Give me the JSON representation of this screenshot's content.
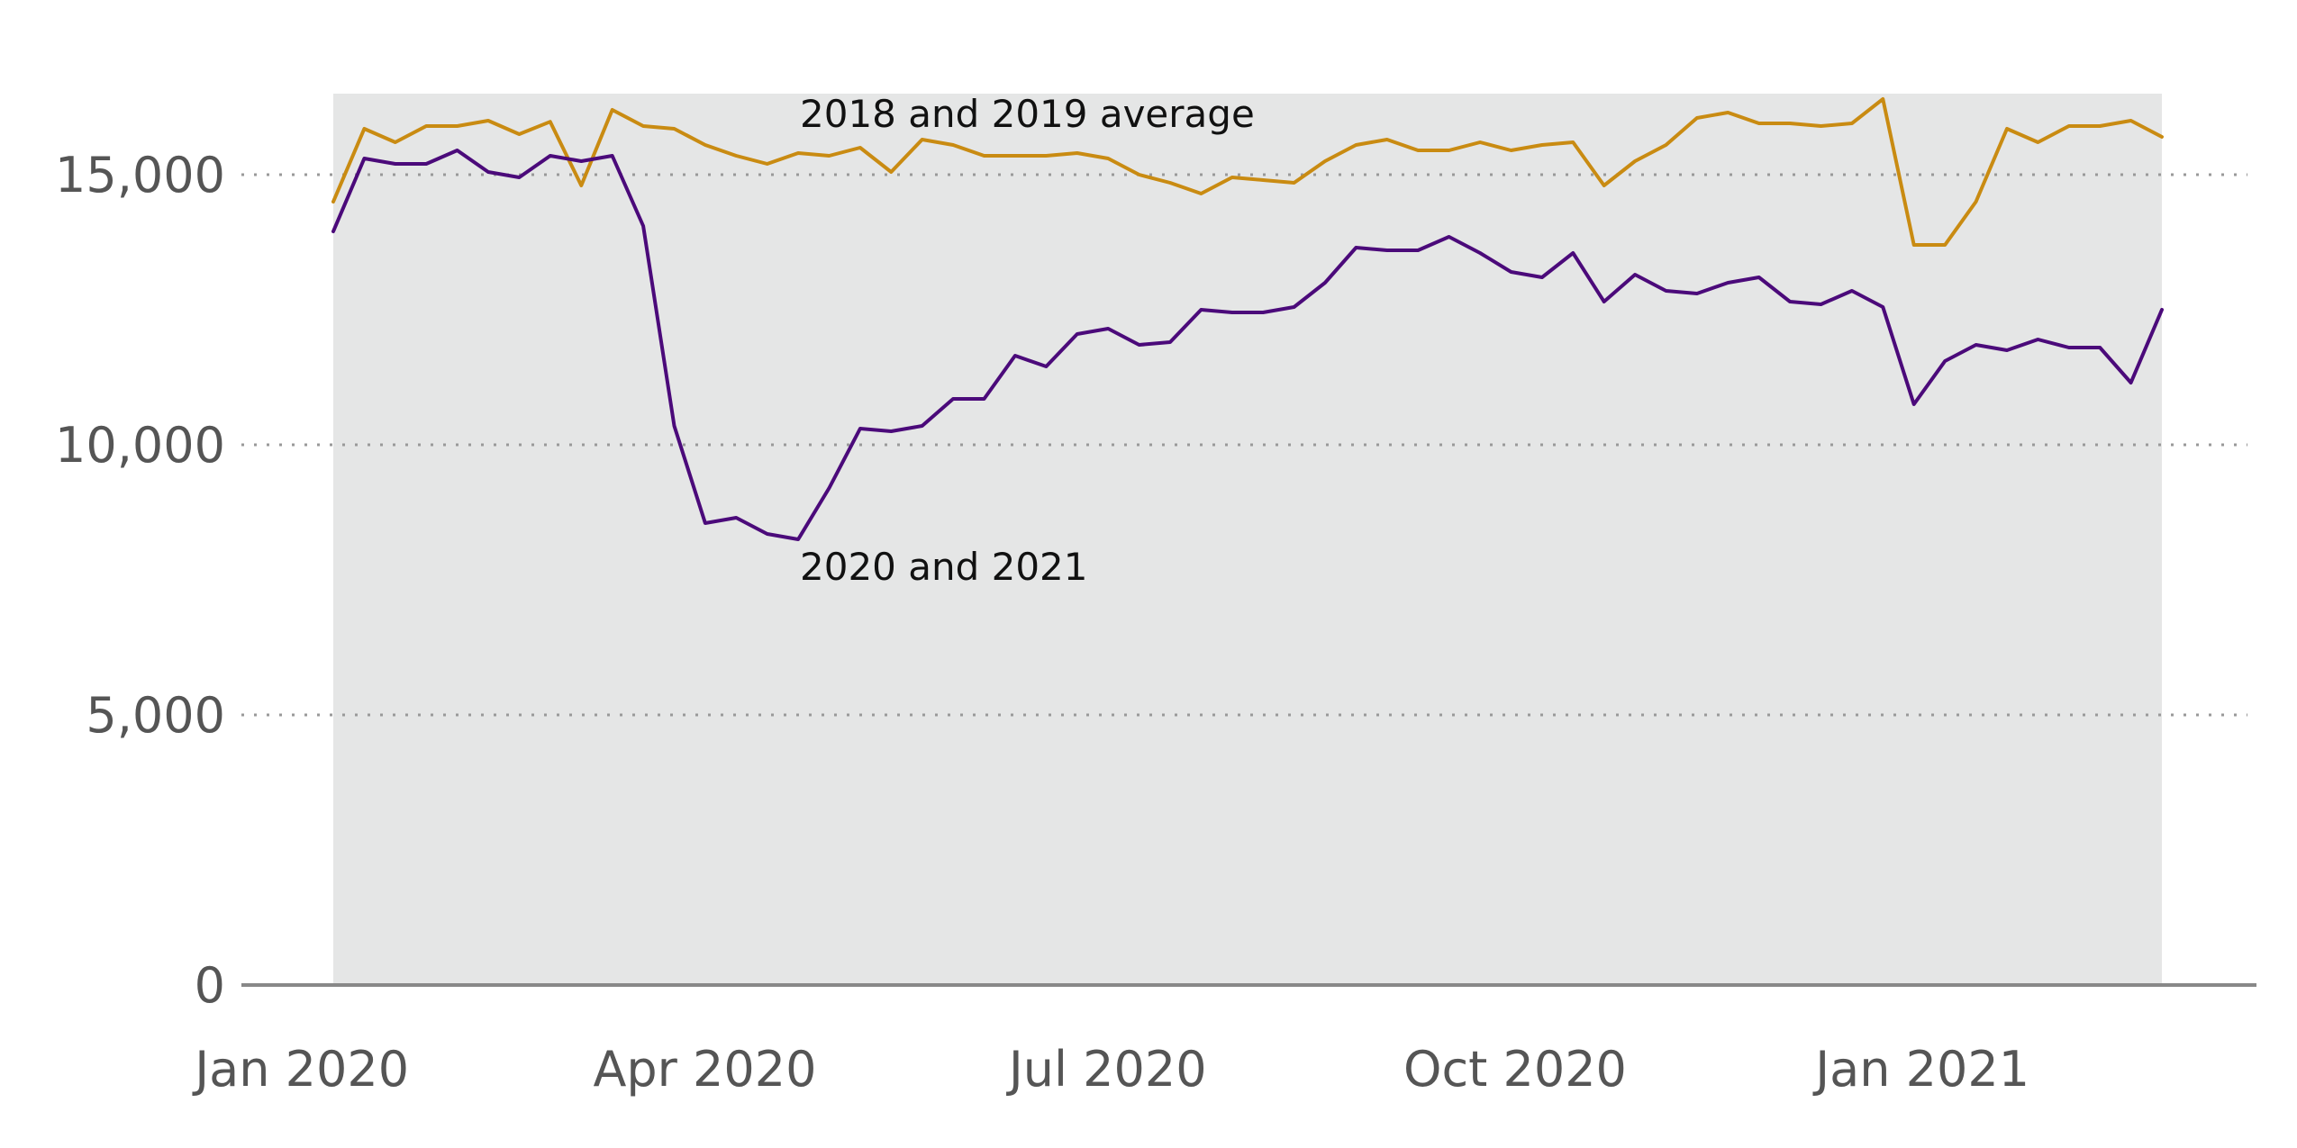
{
  "chart_data": {
    "type": "line",
    "title": "",
    "xlabel": "",
    "ylabel": "",
    "x_start": "2020-01-03",
    "x_step_days": 7,
    "ylim": [
      0,
      16500
    ],
    "yticks": [
      0,
      5000,
      10000,
      15000
    ],
    "ytick_labels": [
      "0",
      "5,000",
      "10,000",
      "15,000"
    ],
    "xticks": [
      {
        "label": "Jan 2020",
        "date": "2020-01-01"
      },
      {
        "label": "Apr 2020",
        "date": "2020-04-01"
      },
      {
        "label": "Jul 2020",
        "date": "2020-07-01"
      },
      {
        "label": "Oct 2020",
        "date": "2020-10-01"
      },
      {
        "label": "Jan 2021",
        "date": "2021-01-01"
      }
    ],
    "grid": true,
    "colors": {
      "fill": "#e5e6e6",
      "series_2020_2021": "#4b0a7a",
      "series_2018_2019": "#c98b12"
    },
    "series": [
      {
        "name": "2018 and 2019 average",
        "color": "#c98b12",
        "values": [
          14500,
          15850,
          15600,
          15900,
          15900,
          16000,
          15750,
          15980,
          14800,
          16200,
          15900,
          15850,
          15550,
          15350,
          15200,
          15400,
          15350,
          15500,
          15050,
          15650,
          15550,
          15350,
          15350,
          15350,
          15400,
          15300,
          15000,
          14850,
          14650,
          14950,
          14900,
          14850,
          15250,
          15550,
          15650,
          15450,
          15450,
          15600,
          15450,
          15550,
          15600,
          14800,
          15250,
          15550,
          16050,
          16150,
          15950,
          15950,
          15900,
          15950,
          16400,
          13700,
          13700,
          14500,
          15850,
          15600,
          15900,
          15900,
          16000,
          15700
        ]
      },
      {
        "name": "2020 and 2021",
        "color": "#4b0a7a",
        "values": [
          13950,
          15300,
          15200,
          15200,
          15450,
          15050,
          14950,
          15350,
          15250,
          15350,
          14050,
          10350,
          8550,
          8650,
          8350,
          8250,
          9200,
          10300,
          10250,
          10350,
          10850,
          10850,
          11650,
          11450,
          12050,
          12150,
          11850,
          11900,
          12500,
          12450,
          12450,
          12550,
          13000,
          13650,
          13600,
          13600,
          13850,
          13550,
          13200,
          13100,
          13550,
          12650,
          13150,
          12850,
          12800,
          13000,
          13100,
          12650,
          12600,
          12850,
          12550,
          10750,
          11550,
          11850,
          11750,
          11950,
          11800,
          11800,
          11150,
          12500
        ]
      }
    ],
    "annotations": [
      {
        "text": "2018 and 2019 average",
        "series": 0
      },
      {
        "text": "2020 and 2021",
        "series": 1
      }
    ]
  }
}
